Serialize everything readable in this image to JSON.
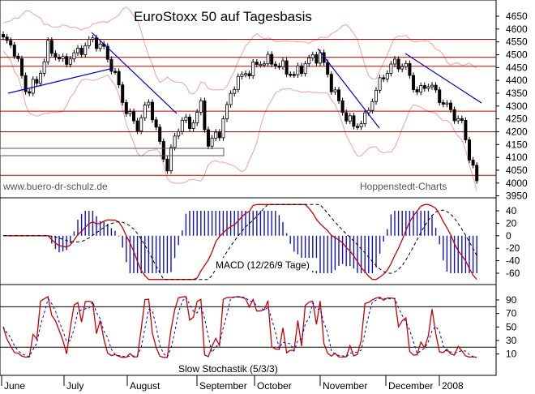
{
  "chart_data": [
    {
      "type": "candlestick",
      "title": "EuroStoxx 50 auf Tagesbasis",
      "ylim": [
        3950,
        4650
      ],
      "y_ticks": [
        "4650",
        "4600",
        "4550",
        "4500",
        "4450",
        "4400",
        "4350",
        "4300",
        "4250",
        "4200",
        "4150",
        "4100",
        "4050",
        "4000",
        "3950"
      ],
      "resistance_lines": [
        4560,
        4490,
        4455,
        4280,
        4200,
        4030
      ],
      "source_left": "www.buero-dr-schulz.de",
      "source_right": "Hoppenstedt-Charts",
      "grid": false
    },
    {
      "type": "line",
      "title": "MACD (12/26/9 Tage)",
      "ylim": [
        -70,
        50
      ],
      "y_ticks": [
        "40",
        "20",
        "0",
        "-20",
        "-40",
        "-60"
      ]
    },
    {
      "type": "line",
      "title": "Slow Stochastik (5/3/3)",
      "ylim": [
        0,
        100
      ],
      "y_ticks": [
        "90",
        "70",
        "50",
        "30",
        "10"
      ],
      "reference_lines": [
        80,
        20
      ]
    }
  ],
  "x_axis": {
    "months": [
      "June",
      "July",
      "August",
      "September",
      "October",
      "November",
      "December",
      "2008"
    ]
  },
  "colors": {
    "price": "#000000",
    "bands": "#f0a0a0",
    "horizontal_lines": "#cc0000",
    "trendlines": "#0000cc",
    "macd_line": "#cc0000",
    "macd_signal": "#000000",
    "histogram": "#1010c0",
    "stoch_k": "#cc0000",
    "stoch_d": "#0000cc"
  }
}
